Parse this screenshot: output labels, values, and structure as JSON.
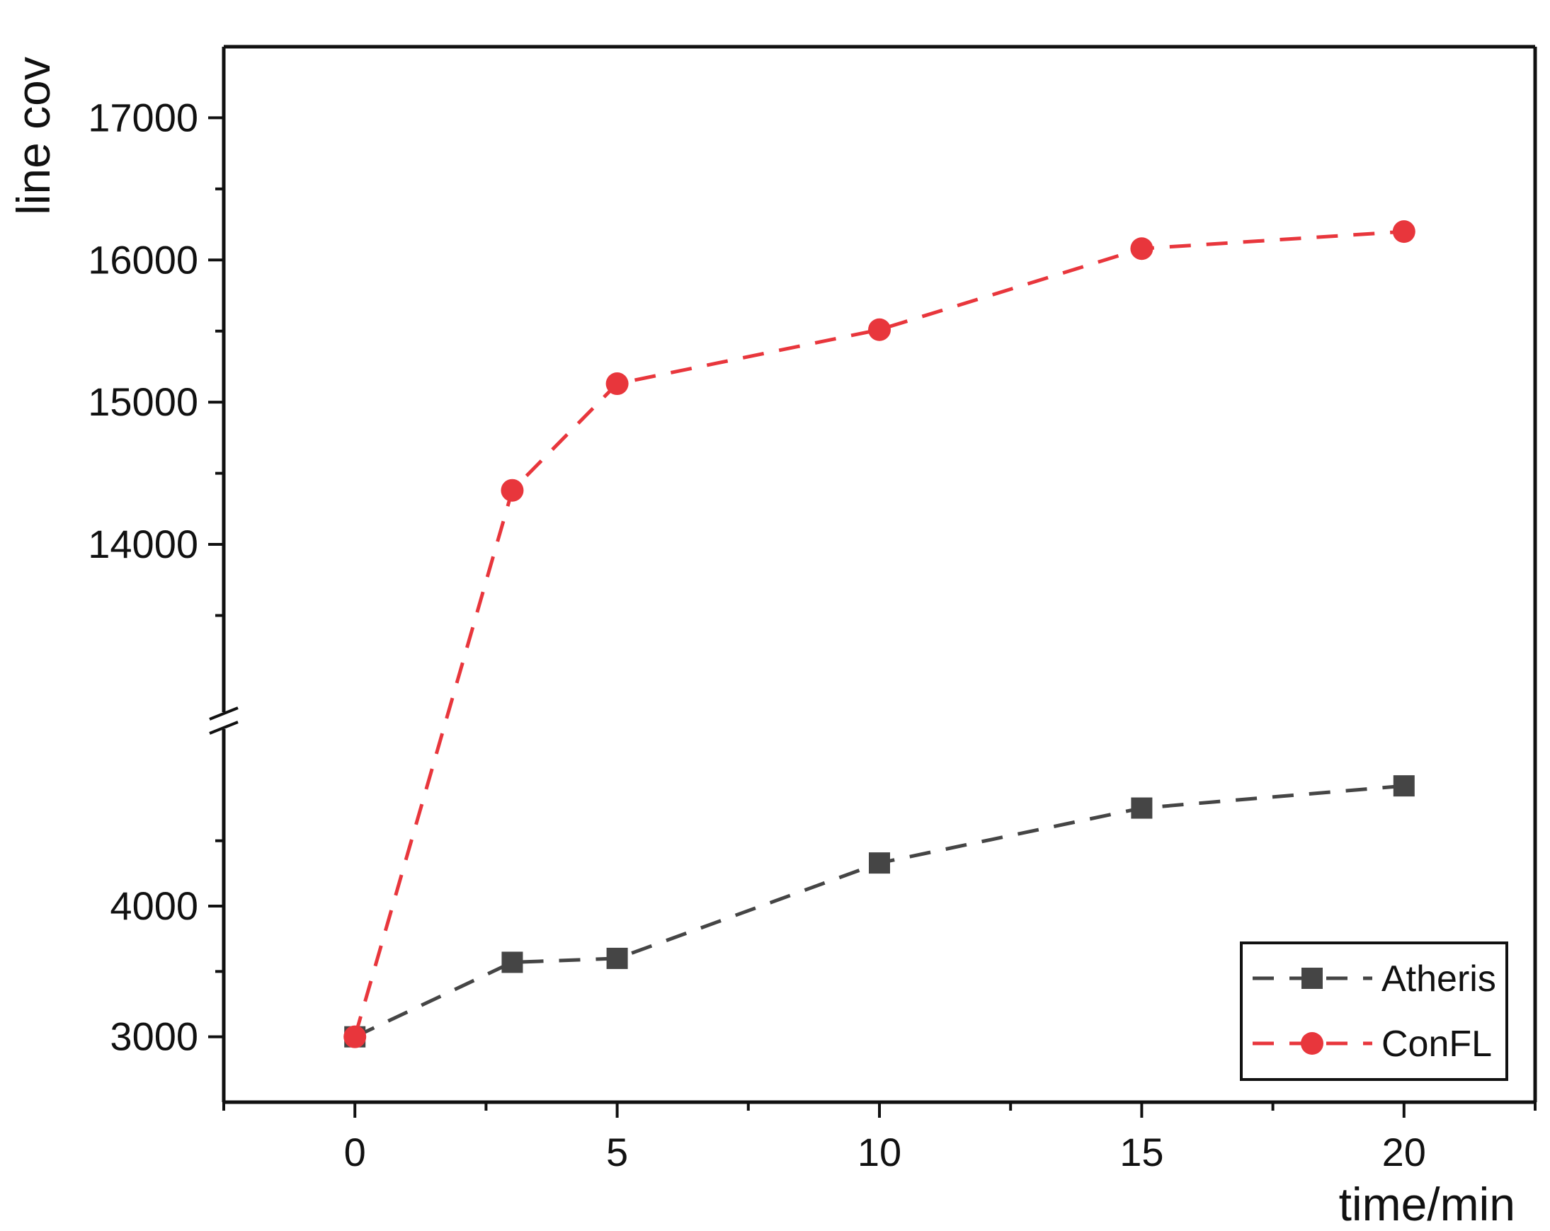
{
  "chart_data": {
    "type": "line",
    "xlabel": "time/min",
    "ylabel": "line cov",
    "xlim": [
      -2.5,
      22.5
    ],
    "x_ticks": [
      0,
      5,
      10,
      15,
      20
    ],
    "y_axis_break": true,
    "y_upper_segment": {
      "range": [
        12900,
        17500
      ],
      "ticks": [
        14000,
        15000,
        16000,
        17000
      ],
      "tick_labels": [
        "14000",
        "15000",
        "16000",
        "17000"
      ]
    },
    "y_lower_segment": {
      "range": [
        2500,
        5300
      ],
      "ticks": [
        3000,
        4000
      ],
      "tick_labels": [
        "3000",
        "4000"
      ]
    },
    "grid": false,
    "legend_position": "bottom-right",
    "series": [
      {
        "name": "Atheris",
        "color": "#454545",
        "marker": "square",
        "line_style": "dashed",
        "x": [
          0,
          3,
          5,
          10,
          15,
          20
        ],
        "y": [
          3000,
          3570,
          3600,
          4330,
          4750,
          4920
        ]
      },
      {
        "name": "ConFL",
        "color": "#e8363c",
        "marker": "circle",
        "line_style": "dashed",
        "x": [
          0,
          3,
          5,
          10,
          15,
          20
        ],
        "y": [
          3000,
          14380,
          15130,
          15510,
          16080,
          16200
        ]
      }
    ]
  }
}
